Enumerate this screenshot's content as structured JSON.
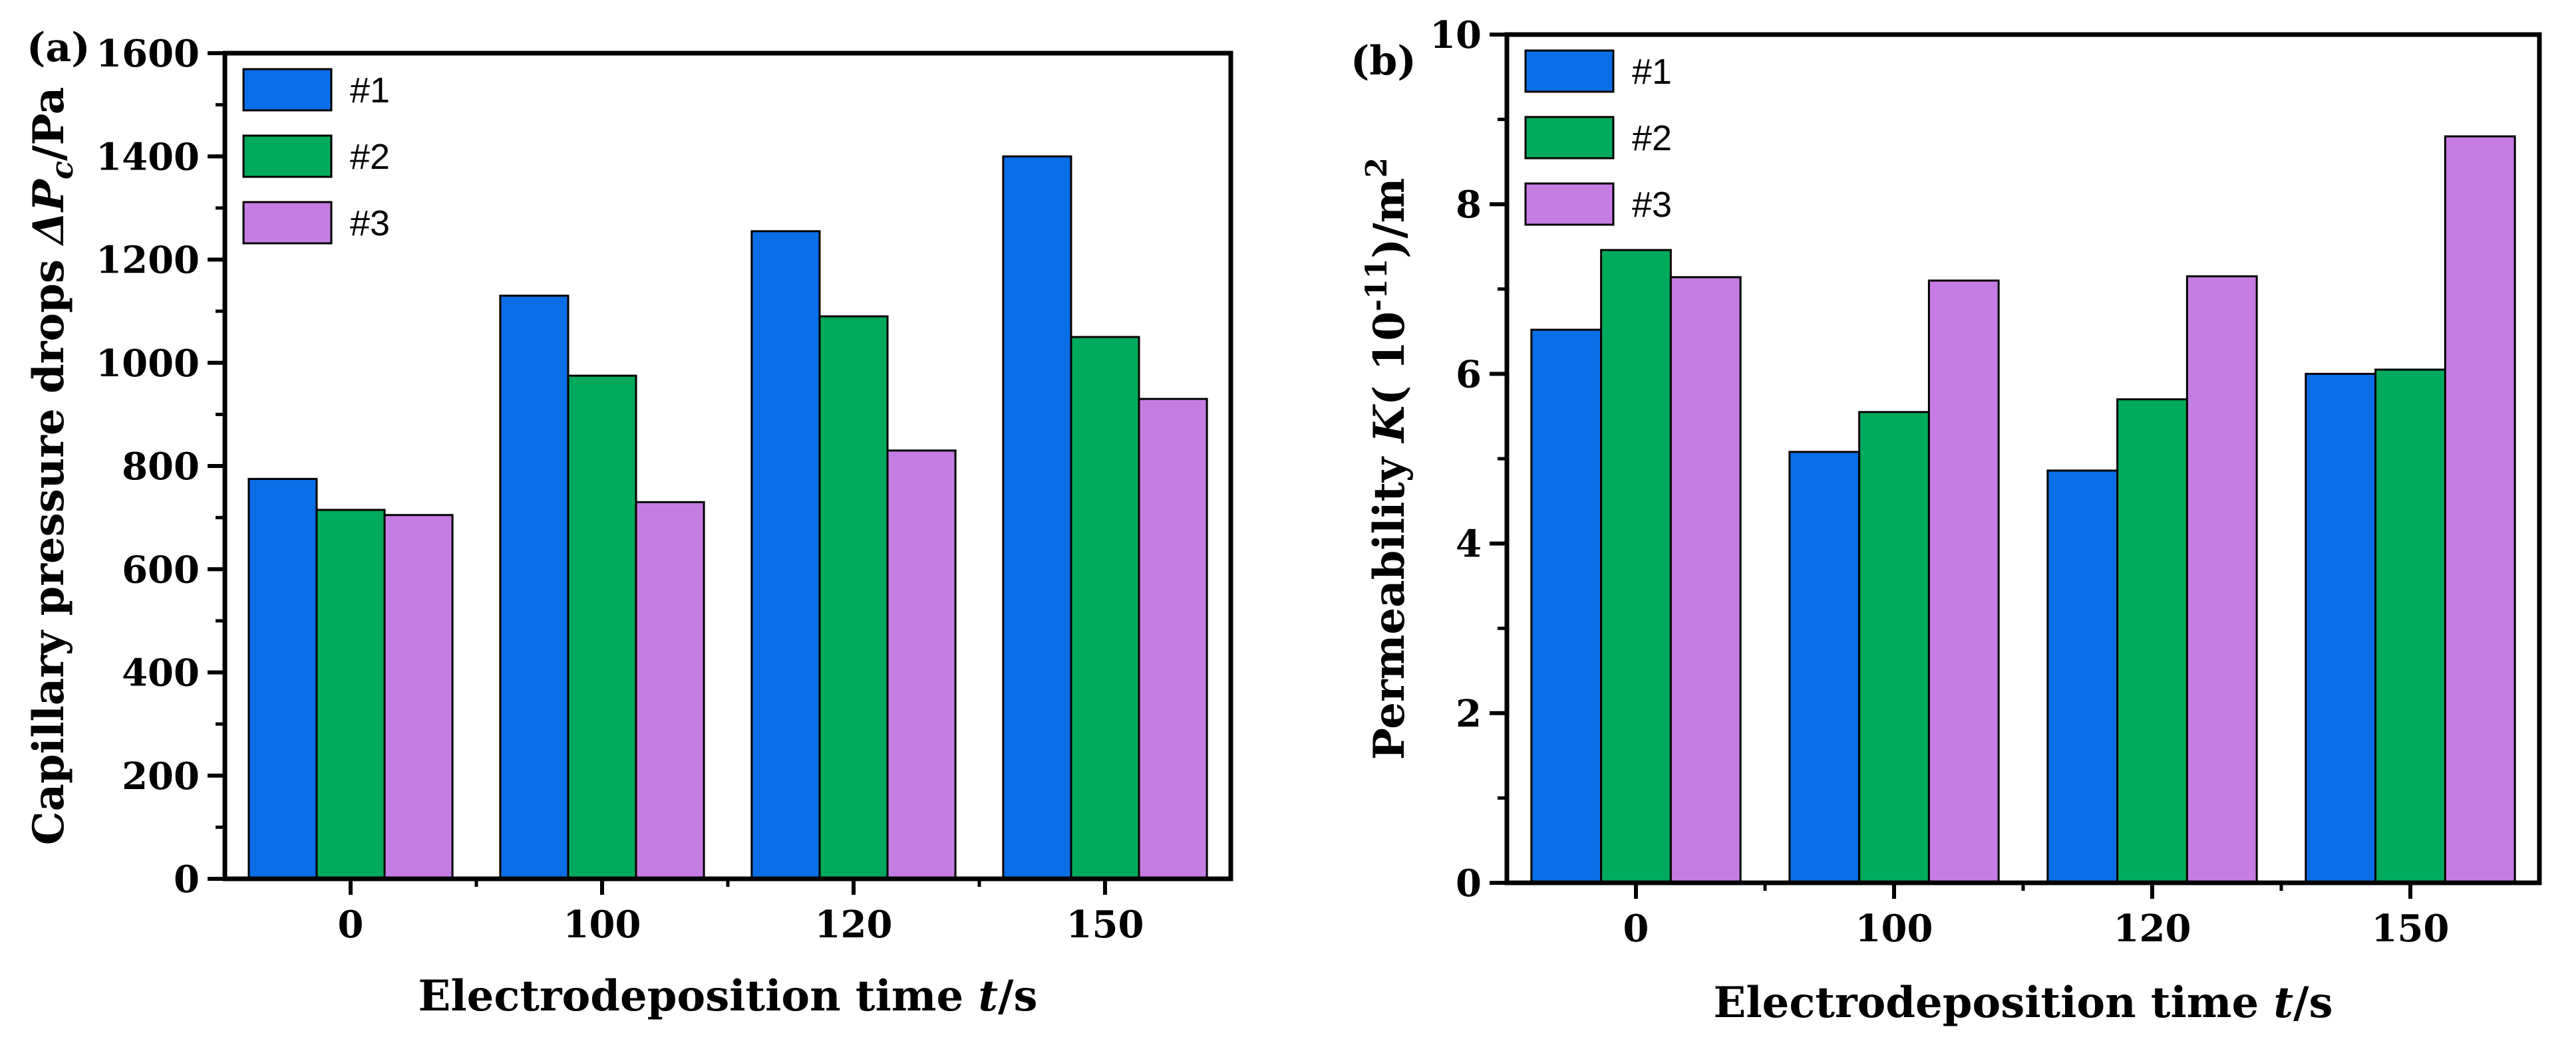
{
  "chart_data": [
    {
      "type": "bar",
      "panel_label": "(a)",
      "categories": [
        "0",
        "100",
        "120",
        "150"
      ],
      "series": [
        {
          "name": "#1",
          "color": "#0a6ee6",
          "values": [
            775,
            1130,
            1255,
            1400
          ]
        },
        {
          "name": "#2",
          "color": "#00aa5c",
          "values": [
            715,
            975,
            1090,
            1050
          ]
        },
        {
          "name": "#3",
          "color": "#c67de3",
          "values": [
            705,
            730,
            830,
            930
          ]
        }
      ],
      "ylim": [
        0,
        1600
      ],
      "yticks": [
        "0",
        "200",
        "400",
        "600",
        "800",
        "1000",
        "1200",
        "1400",
        "1600"
      ],
      "xlabel": {
        "prefix": "Electrodeposition time ",
        "var": "t",
        "suffix": "/s"
      },
      "ylabel": {
        "prefix": "Capillary pressure drops ",
        "var": "ΔP",
        "sub": "c",
        "suffix": "/Pa"
      },
      "legend_position": "top-left"
    },
    {
      "type": "bar",
      "panel_label": "(b)",
      "categories": [
        "0",
        "100",
        "120",
        "150"
      ],
      "series": [
        {
          "name": "#1",
          "color": "#0a6ee6",
          "values": [
            6.52,
            5.08,
            4.86,
            6.0
          ]
        },
        {
          "name": "#2",
          "color": "#00aa5c",
          "values": [
            7.46,
            5.55,
            5.7,
            6.05
          ]
        },
        {
          "name": "#3",
          "color": "#c67de3",
          "values": [
            7.14,
            7.1,
            7.15,
            8.8
          ]
        }
      ],
      "ylim": [
        0,
        10
      ],
      "yticks": [
        "0",
        "2",
        "4",
        "6",
        "8",
        "10"
      ],
      "xlabel": {
        "prefix": "Electrodeposition time ",
        "var": "t",
        "suffix": "/s"
      },
      "ylabel": {
        "prefix": "Permeability ",
        "var": "K",
        "mid": "(    10",
        "sup": "-11",
        "suffix": ")/m",
        "sup2": "2"
      },
      "legend_position": "top-left"
    }
  ]
}
